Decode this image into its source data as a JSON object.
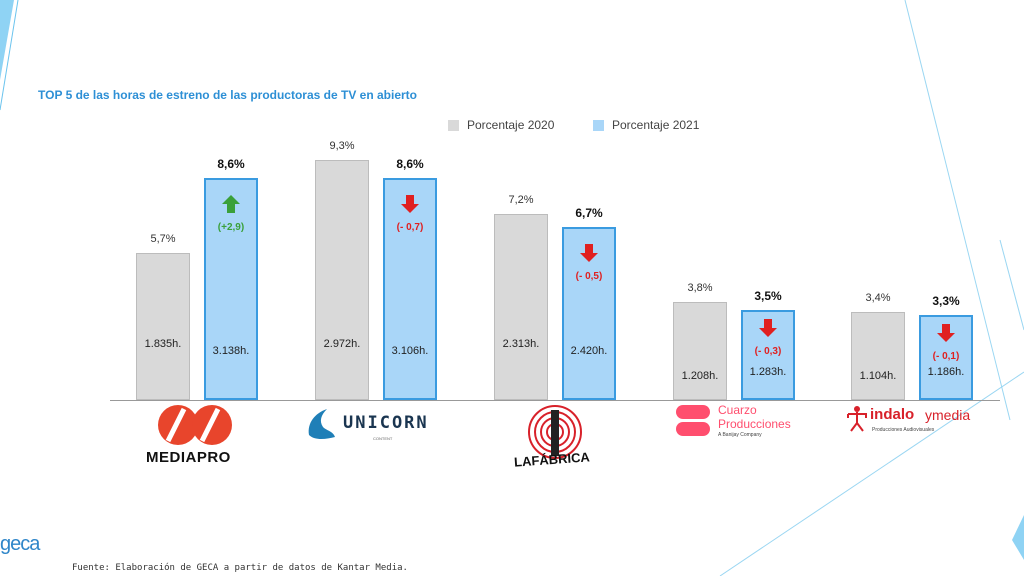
{
  "title": "TOP 5 de las horas de estreno de las productoras de TV en abierto",
  "legend": {
    "s2020": "Porcentaje 2020",
    "s2021": "Porcentaje 2021"
  },
  "colors": {
    "s2020": "#d9d9d9",
    "s2021": "#a9d6f8",
    "up": "#3aa03a",
    "down": "#e02020",
    "title": "#2d8fd5"
  },
  "logos": {
    "mediapro": "MEDIAPRO",
    "unicorn": "UNICORN",
    "unicorn_sub": "CONTENT",
    "lafabrica": "LAFÁBRICA",
    "cuarzo_1": "Cuarzo",
    "cuarzo_2": "Producciones",
    "cuarzo_3": "A Banijay Company",
    "indalo": "indalo",
    "indalo_2": "ymedia",
    "indalo_sub": "Producciones Audiovisuales"
  },
  "footnote": "Fuente: Elaboración de GECA a partir de datos de Kantar Media.",
  "brand": "geca",
  "chart_data": {
    "type": "bar",
    "title": "TOP 5 de las horas de estreno de las productoras de TV en abierto",
    "categories": [
      "MEDIAPRO",
      "UNICORN",
      "LAFÁBRICA",
      "Cuarzo Producciones",
      "indalo y media"
    ],
    "series": [
      {
        "name": "Porcentaje 2020",
        "values": [
          5.7,
          9.3,
          7.2,
          3.8,
          3.4
        ],
        "pct_labels": [
          "5,7%",
          "9,3%",
          "7,2%",
          "3,8%",
          "3,4%"
        ],
        "hours_labels": [
          "1.835h.",
          "2.972h.",
          "2.313h.",
          "1.208h.",
          "1.104h."
        ]
      },
      {
        "name": "Porcentaje 2021",
        "values": [
          8.6,
          8.6,
          6.7,
          3.5,
          3.3
        ],
        "pct_labels": [
          "8,6%",
          "8,6%",
          "6,7%",
          "3,5%",
          "3,3%"
        ],
        "hours_labels": [
          "3.138h.",
          "3.106h.",
          "2.420h.",
          "1.283h.",
          "1.186h."
        ]
      }
    ],
    "changes": [
      "(+2,9)",
      "(- 0,7)",
      "(- 0,5)",
      "(- 0,3)",
      "(- 0,1)"
    ],
    "change_direction": [
      "up",
      "down",
      "down",
      "down",
      "down"
    ],
    "ylim": [
      0,
      10
    ],
    "grid": false,
    "legend_position": "top-right"
  }
}
